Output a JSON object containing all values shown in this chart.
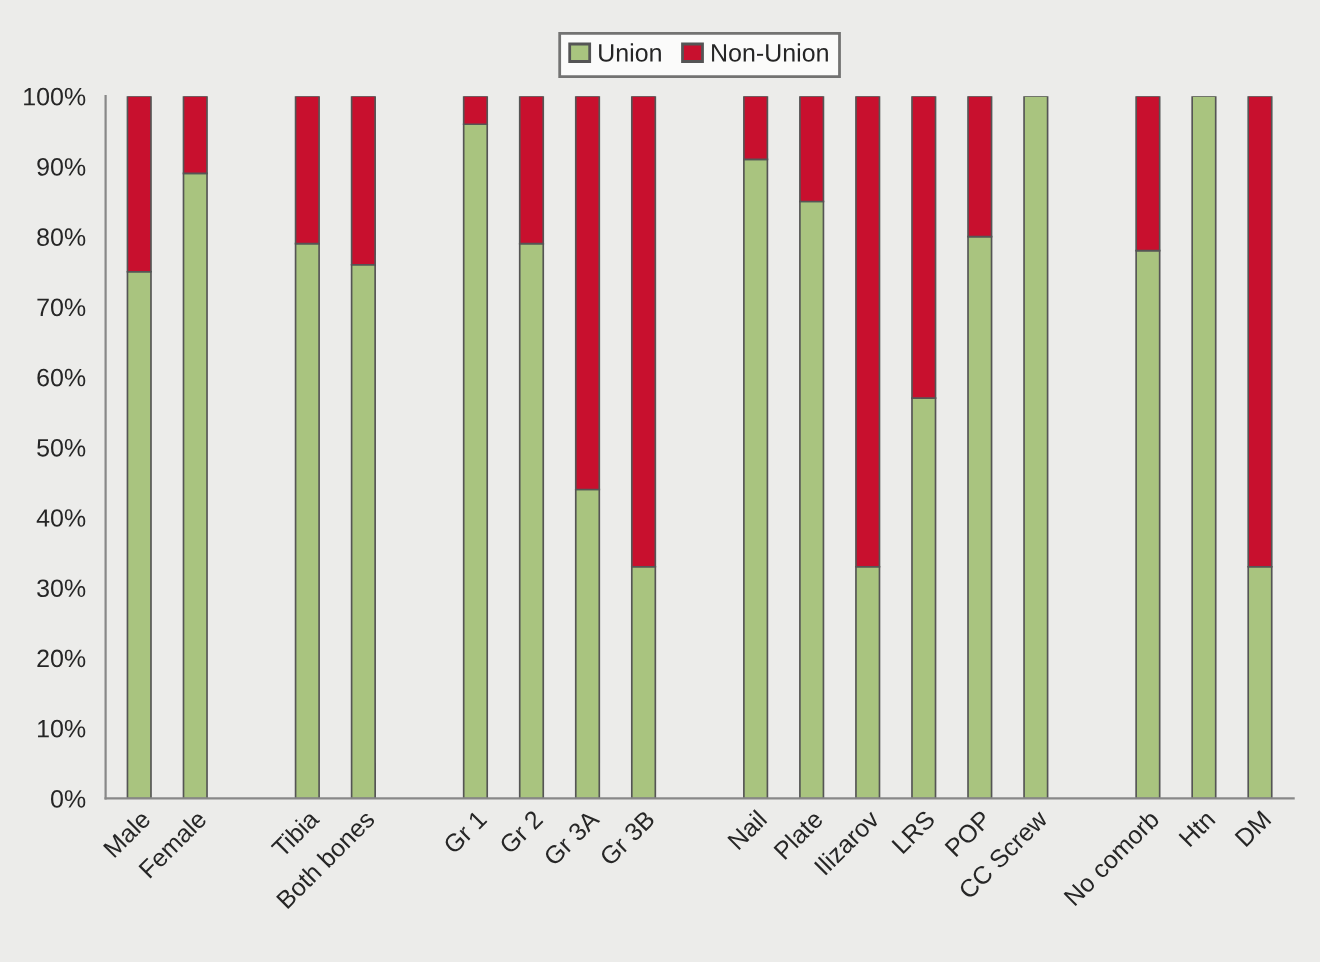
{
  "chart_data": {
    "type": "bar",
    "stacked": true,
    "categories": [
      "Male",
      "Female",
      null,
      "Tibia",
      "Both bones",
      null,
      "Gr 1",
      "Gr 2",
      "Gr 3A",
      "Gr 3B",
      null,
      "Nail",
      "Plate",
      "Ilizarov",
      "LRS",
      "POP",
      "CC Screw",
      null,
      "No comorb",
      "Htn",
      "DM"
    ],
    "series": [
      {
        "name": "Union",
        "color": "#a9c47f",
        "values": [
          75,
          89,
          null,
          79,
          76,
          null,
          96,
          79,
          44,
          33,
          null,
          91,
          85,
          33,
          57,
          80,
          100,
          null,
          78,
          100,
          33
        ]
      },
      {
        "name": "Non-Union",
        "color": "#c8102e",
        "values": [
          25,
          11,
          null,
          21,
          24,
          null,
          4,
          21,
          56,
          67,
          null,
          9,
          15,
          67,
          43,
          20,
          null,
          null,
          22,
          null,
          67
        ]
      }
    ],
    "ylim": [
      0,
      100
    ],
    "yticks": [
      {
        "value": 0,
        "label": "0%"
      },
      {
        "value": 10,
        "label": "10%"
      },
      {
        "value": 20,
        "label": "20%"
      },
      {
        "value": 30,
        "label": "30%"
      },
      {
        "value": 40,
        "label": "40%"
      },
      {
        "value": 50,
        "label": "50%"
      },
      {
        "value": 60,
        "label": "60%"
      },
      {
        "value": 70,
        "label": "70%"
      },
      {
        "value": 80,
        "label": "80%"
      },
      {
        "value": 90,
        "label": "90%"
      },
      {
        "value": 100,
        "label": "100%"
      }
    ],
    "grid": false,
    "legend": "top"
  }
}
